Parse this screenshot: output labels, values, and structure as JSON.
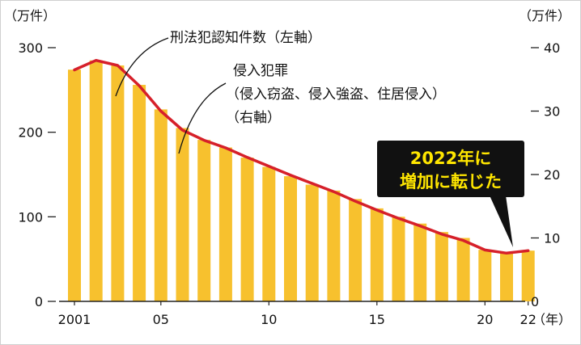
{
  "chart_data": {
    "type": "bar+line",
    "left_unit": "（万件）",
    "right_unit": "（万件）",
    "x_unit": "（年）",
    "x_tick_labels": [
      {
        "year": 2001,
        "label": "2001"
      },
      {
        "year": 2005,
        "label": "05"
      },
      {
        "year": 2010,
        "label": "10"
      },
      {
        "year": 2015,
        "label": "15"
      },
      {
        "year": 2020,
        "label": "20"
      },
      {
        "year": 2022,
        "label": "22"
      }
    ],
    "left_axis": {
      "min": 0,
      "max": 300,
      "ticks": [
        0,
        100,
        200,
        300
      ]
    },
    "right_axis": {
      "min": 0,
      "max": 40,
      "ticks": [
        10,
        20,
        30,
        40
      ]
    },
    "years": [
      2001,
      2002,
      2003,
      2004,
      2005,
      2006,
      2007,
      2008,
      2009,
      2010,
      2011,
      2012,
      2013,
      2014,
      2015,
      2016,
      2017,
      2018,
      2019,
      2020,
      2021,
      2022
    ],
    "series": [
      {
        "name": "刑法犯認知件数（左軸）",
        "type": "bar",
        "axis": "left",
        "color": "#f7c12e",
        "values": [
          274,
          285,
          279,
          256,
          227,
          205,
          191,
          182,
          170,
          159,
          148,
          138,
          131,
          121,
          110,
          100,
          92,
          82,
          75,
          61,
          57,
          60
        ]
      },
      {
        "name": "侵入犯罪（侵入窃盗、侵入強盗、住居侵入）（右軸）",
        "type": "line",
        "axis": "right",
        "color": "#d6202a",
        "values": [
          36.5,
          38,
          37.2,
          34,
          30,
          27,
          25.4,
          24.2,
          22.7,
          21.3,
          19.9,
          18.6,
          17.3,
          15.8,
          14.4,
          13.1,
          11.9,
          10.6,
          9.6,
          8.1,
          7.6,
          8.0
        ]
      }
    ],
    "annotations": {
      "bar_label": "刑法犯認知件数（左軸）",
      "line_label": [
        "侵入犯罪",
        "（侵入窃盗、侵入強盗、住居侵入）",
        "（右軸）"
      ],
      "callout": [
        "2022年に",
        "増加に転じた"
      ]
    },
    "grid": false
  }
}
